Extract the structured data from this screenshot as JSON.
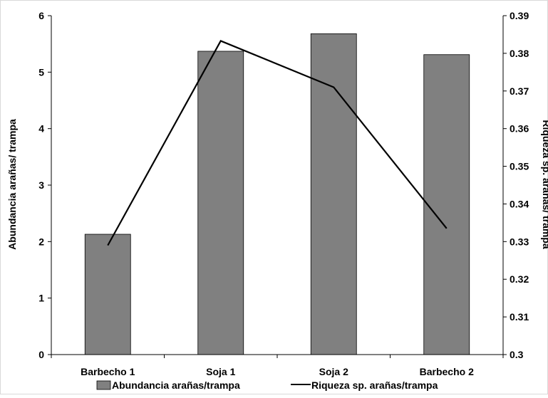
{
  "chart_data": {
    "type": "bar",
    "categories": [
      "Barbecho 1",
      "Soja 1",
      "Soja 2",
      "Barbecho 2"
    ],
    "series": [
      {
        "name": "Abundancia arañas/trampa",
        "type": "bar",
        "axis": "left",
        "values": [
          2.13,
          5.37,
          5.68,
          5.31
        ],
        "color": "#808080"
      },
      {
        "name": "Riqueza sp. arañas/trampa",
        "type": "line",
        "axis": "right",
        "values": [
          0.329,
          0.3833,
          0.371,
          0.3335
        ],
        "color": "#000000"
      }
    ],
    "ylabel": "Abundancia arañas/ trampa",
    "ylabel_right": "Riqueza sp. arañas/ trampa",
    "xlabel": "",
    "ylim": [
      0,
      6
    ],
    "ylim_right": [
      0.3,
      0.39
    ],
    "yticks": [
      "0",
      "1",
      "2",
      "3",
      "4",
      "5",
      "6"
    ],
    "yticks_right": [
      "0.3",
      "0.31",
      "0.32",
      "0.33",
      "0.34",
      "0.35",
      "0.36",
      "0.37",
      "0.38",
      "0.39"
    ],
    "grid": false,
    "legend_position": "bottom"
  }
}
